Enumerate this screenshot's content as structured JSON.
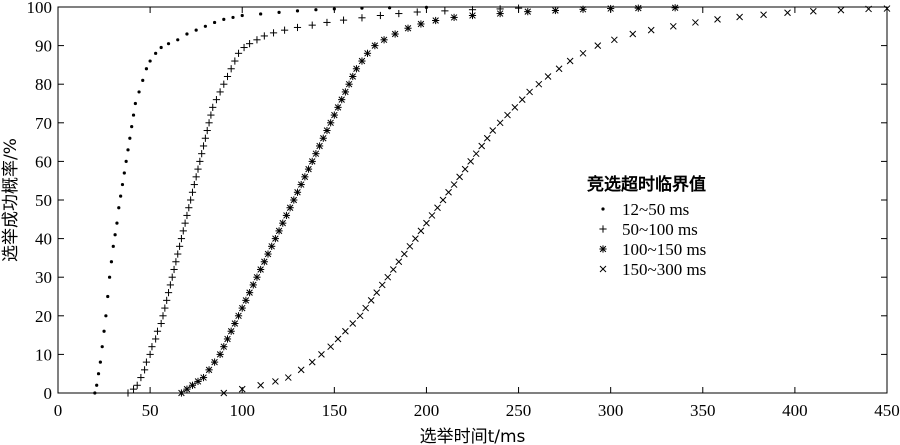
{
  "chart_data": {
    "type": "scatter",
    "xlabel": "选举时间t/ms",
    "ylabel": "选举成功概率/%",
    "xlim": [
      0,
      450
    ],
    "ylim": [
      0,
      100
    ],
    "xticks": [
      0,
      50,
      100,
      150,
      200,
      250,
      300,
      350,
      400,
      450
    ],
    "yticks": [
      0,
      10,
      20,
      30,
      40,
      50,
      60,
      70,
      80,
      90,
      100
    ],
    "grid": false,
    "legend": {
      "title": "竞选超时临界值",
      "position": "center-right",
      "entries": [
        "12~50 ms",
        "50~100 ms",
        "100~150 ms",
        "150~300 ms"
      ]
    },
    "series": [
      {
        "name": "12~50 ms",
        "marker": "dot",
        "points": [
          [
            20,
            0
          ],
          [
            21,
            2
          ],
          [
            22,
            5
          ],
          [
            23,
            8
          ],
          [
            24,
            12
          ],
          [
            25,
            16
          ],
          [
            26,
            20
          ],
          [
            27,
            25
          ],
          [
            28,
            30
          ],
          [
            29,
            34
          ],
          [
            30,
            38
          ],
          [
            31,
            41
          ],
          [
            32,
            44
          ],
          [
            33,
            48
          ],
          [
            34,
            51
          ],
          [
            35,
            54
          ],
          [
            36,
            57
          ],
          [
            37,
            60
          ],
          [
            38,
            63
          ],
          [
            39,
            66
          ],
          [
            40,
            69
          ],
          [
            41,
            72
          ],
          [
            42,
            75
          ],
          [
            44,
            78
          ],
          [
            46,
            81
          ],
          [
            48,
            84
          ],
          [
            50,
            86
          ],
          [
            53,
            88
          ],
          [
            56,
            89.5
          ],
          [
            60,
            90.5
          ],
          [
            65,
            91.5
          ],
          [
            70,
            93
          ],
          [
            75,
            94
          ],
          [
            80,
            95
          ],
          [
            85,
            96
          ],
          [
            90,
            96.8
          ],
          [
            95,
            97.3
          ],
          [
            100,
            97.8
          ],
          [
            110,
            98.2
          ],
          [
            120,
            98.6
          ],
          [
            130,
            99
          ],
          [
            140,
            99.3
          ],
          [
            150,
            99.5
          ],
          [
            165,
            99.7
          ],
          [
            180,
            99.8
          ],
          [
            200,
            99.9
          ]
        ]
      },
      {
        "name": "50~100 ms",
        "marker": "plus",
        "points": [
          [
            38,
            0
          ],
          [
            41,
            1
          ],
          [
            43,
            2
          ],
          [
            45,
            4
          ],
          [
            47,
            6
          ],
          [
            48,
            8
          ],
          [
            50,
            10
          ],
          [
            51,
            12
          ],
          [
            53,
            14
          ],
          [
            54,
            16
          ],
          [
            56,
            18
          ],
          [
            57,
            20
          ],
          [
            58,
            22
          ],
          [
            59,
            24
          ],
          [
            60,
            26
          ],
          [
            61,
            28
          ],
          [
            62,
            30
          ],
          [
            63,
            32
          ],
          [
            64,
            34
          ],
          [
            65,
            36
          ],
          [
            66,
            38
          ],
          [
            67,
            40
          ],
          [
            68,
            42
          ],
          [
            69,
            44
          ],
          [
            70,
            46
          ],
          [
            71,
            48
          ],
          [
            72,
            50
          ],
          [
            73,
            52
          ],
          [
            74,
            54
          ],
          [
            75,
            56
          ],
          [
            76,
            58
          ],
          [
            77,
            60
          ],
          [
            78,
            62
          ],
          [
            79,
            64
          ],
          [
            80,
            66
          ],
          [
            81,
            68
          ],
          [
            82,
            70
          ],
          [
            83,
            72
          ],
          [
            84,
            74
          ],
          [
            86,
            76
          ],
          [
            88,
            78
          ],
          [
            90,
            80
          ],
          [
            92,
            82
          ],
          [
            94,
            84
          ],
          [
            96,
            86
          ],
          [
            98,
            88
          ],
          [
            101,
            89.5
          ],
          [
            104,
            90.5
          ],
          [
            108,
            91.5
          ],
          [
            112,
            92.5
          ],
          [
            117,
            93.3
          ],
          [
            123,
            94
          ],
          [
            130,
            94.7
          ],
          [
            138,
            95.3
          ],
          [
            146,
            96
          ],
          [
            155,
            96.6
          ],
          [
            165,
            97.2
          ],
          [
            175,
            97.8
          ],
          [
            185,
            98.3
          ],
          [
            195,
            98.7
          ],
          [
            210,
            99
          ],
          [
            225,
            99.3
          ],
          [
            240,
            99.5
          ],
          [
            250,
            99.7
          ]
        ]
      },
      {
        "name": "100~150 ms",
        "marker": "asterisk",
        "points": [
          [
            67,
            0
          ],
          [
            70,
            1
          ],
          [
            73,
            2
          ],
          [
            76,
            3
          ],
          [
            79,
            4
          ],
          [
            82,
            6
          ],
          [
            85,
            8
          ],
          [
            88,
            10
          ],
          [
            90,
            12
          ],
          [
            92,
            14
          ],
          [
            94,
            16
          ],
          [
            96,
            18
          ],
          [
            98,
            20
          ],
          [
            100,
            22
          ],
          [
            102,
            24
          ],
          [
            104,
            26
          ],
          [
            106,
            28
          ],
          [
            108,
            30
          ],
          [
            110,
            32
          ],
          [
            112,
            34
          ],
          [
            114,
            36
          ],
          [
            116,
            38
          ],
          [
            118,
            40
          ],
          [
            120,
            42
          ],
          [
            122,
            44
          ],
          [
            124,
            46
          ],
          [
            126,
            48
          ],
          [
            128,
            50
          ],
          [
            130,
            52
          ],
          [
            132,
            54
          ],
          [
            134,
            56
          ],
          [
            136,
            58
          ],
          [
            138,
            60
          ],
          [
            140,
            62
          ],
          [
            142,
            64
          ],
          [
            144,
            66
          ],
          [
            146,
            68
          ],
          [
            148,
            70
          ],
          [
            150,
            72
          ],
          [
            152,
            74
          ],
          [
            154,
            76
          ],
          [
            156,
            78
          ],
          [
            158,
            80
          ],
          [
            160,
            82
          ],
          [
            162,
            84
          ],
          [
            165,
            86
          ],
          [
            168,
            88
          ],
          [
            172,
            90
          ],
          [
            177,
            91.5
          ],
          [
            183,
            93
          ],
          [
            190,
            94.5
          ],
          [
            197,
            95.6
          ],
          [
            205,
            96.5
          ],
          [
            215,
            97.3
          ],
          [
            225,
            97.8
          ],
          [
            240,
            98.3
          ],
          [
            255,
            98.8
          ],
          [
            270,
            99.1
          ],
          [
            285,
            99.4
          ],
          [
            300,
            99.6
          ],
          [
            315,
            99.7
          ],
          [
            335,
            99.8
          ]
        ]
      },
      {
        "name": "150~300 ms",
        "marker": "cross",
        "points": [
          [
            90,
            0
          ],
          [
            100,
            1
          ],
          [
            110,
            2
          ],
          [
            118,
            3
          ],
          [
            125,
            4
          ],
          [
            132,
            6
          ],
          [
            138,
            8
          ],
          [
            143,
            10
          ],
          [
            148,
            12
          ],
          [
            152,
            14
          ],
          [
            156,
            16
          ],
          [
            160,
            18
          ],
          [
            164,
            20
          ],
          [
            167,
            22
          ],
          [
            170,
            24
          ],
          [
            173,
            26
          ],
          [
            176,
            28
          ],
          [
            179,
            30
          ],
          [
            182,
            32
          ],
          [
            185,
            34
          ],
          [
            188,
            36
          ],
          [
            191,
            38
          ],
          [
            194,
            40
          ],
          [
            197,
            42
          ],
          [
            200,
            44
          ],
          [
            203,
            46
          ],
          [
            206,
            48
          ],
          [
            209,
            50
          ],
          [
            212,
            52
          ],
          [
            215,
            54
          ],
          [
            218,
            56
          ],
          [
            221,
            58
          ],
          [
            224,
            60
          ],
          [
            227,
            62
          ],
          [
            230,
            64
          ],
          [
            233,
            66
          ],
          [
            236,
            68
          ],
          [
            240,
            70
          ],
          [
            244,
            72
          ],
          [
            248,
            74
          ],
          [
            252,
            76
          ],
          [
            256,
            78
          ],
          [
            261,
            80
          ],
          [
            266,
            82
          ],
          [
            272,
            84
          ],
          [
            278,
            86
          ],
          [
            285,
            88
          ],
          [
            293,
            90
          ],
          [
            302,
            91.5
          ],
          [
            312,
            93
          ],
          [
            322,
            94
          ],
          [
            334,
            95
          ],
          [
            346,
            96
          ],
          [
            358,
            96.8
          ],
          [
            370,
            97.4
          ],
          [
            383,
            98
          ],
          [
            396,
            98.5
          ],
          [
            410,
            98.9
          ],
          [
            425,
            99.2
          ],
          [
            440,
            99.5
          ],
          [
            450,
            99.6
          ]
        ]
      }
    ]
  }
}
